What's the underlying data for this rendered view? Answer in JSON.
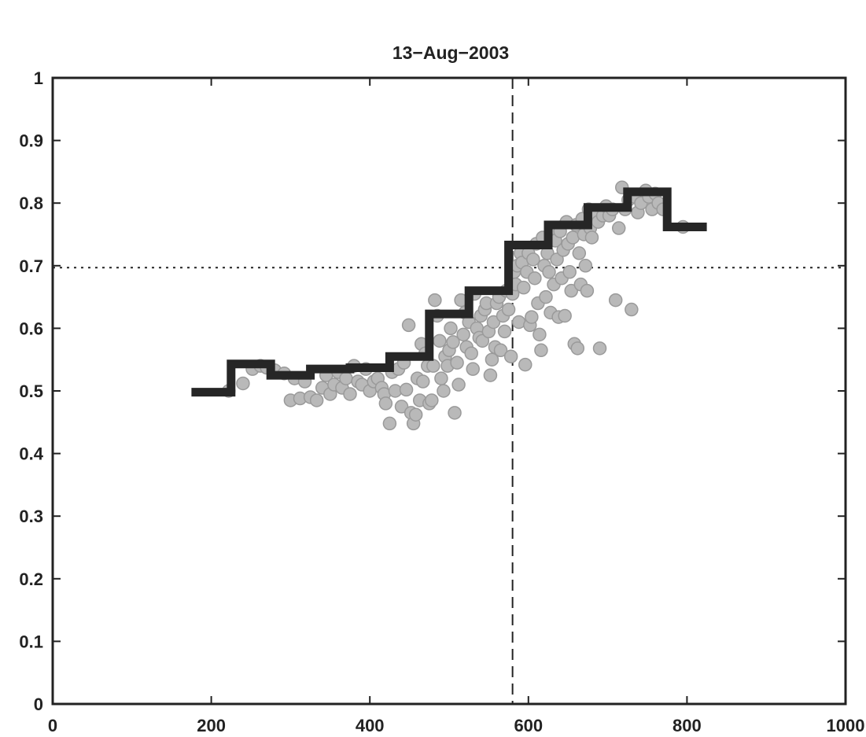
{
  "chart_data": {
    "type": "scatter",
    "title": "13−Aug−2003",
    "xlabel": "",
    "ylabel": "",
    "xlim": [
      0,
      1000
    ],
    "ylim": [
      0,
      1
    ],
    "x_ticks": [
      "0",
      "200",
      "400",
      "600",
      "800",
      "1000"
    ],
    "y_ticks": [
      "0",
      "0.1",
      "0.2",
      "0.3",
      "0.4",
      "0.5",
      "0.6",
      "0.7",
      "0.8",
      "0.9",
      "1"
    ],
    "grid": false,
    "legend": "none",
    "reference_lines": [
      {
        "orientation": "vertical",
        "value": 580,
        "style": "dashed"
      },
      {
        "orientation": "horizontal",
        "value": 0.697,
        "style": "dotted"
      }
    ],
    "colors": {
      "axis": "#222222",
      "points_fill": "#b9b9b9",
      "points_stroke": "#9a9a9a",
      "step_line": "#262626"
    },
    "series": [
      {
        "kind": "scatter",
        "points": [
          [
            222,
            0.5
          ],
          [
            240,
            0.512
          ],
          [
            252,
            0.535
          ],
          [
            262,
            0.54
          ],
          [
            270,
            0.537
          ],
          [
            280,
            0.533
          ],
          [
            292,
            0.528
          ],
          [
            300,
            0.485
          ],
          [
            305,
            0.52
          ],
          [
            312,
            0.488
          ],
          [
            318,
            0.515
          ],
          [
            325,
            0.49
          ],
          [
            333,
            0.485
          ],
          [
            340,
            0.505
          ],
          [
            345,
            0.525
          ],
          [
            350,
            0.495
          ],
          [
            355,
            0.51
          ],
          [
            360,
            0.53
          ],
          [
            365,
            0.505
          ],
          [
            370,
            0.52
          ],
          [
            375,
            0.495
          ],
          [
            380,
            0.54
          ],
          [
            385,
            0.515
          ],
          [
            390,
            0.51
          ],
          [
            395,
            0.535
          ],
          [
            400,
            0.5
          ],
          [
            405,
            0.515
          ],
          [
            410,
            0.52
          ],
          [
            415,
            0.505
          ],
          [
            418,
            0.495
          ],
          [
            420,
            0.48
          ],
          [
            425,
            0.448
          ],
          [
            428,
            0.53
          ],
          [
            432,
            0.5
          ],
          [
            436,
            0.535
          ],
          [
            440,
            0.475
          ],
          [
            443,
            0.545
          ],
          [
            446,
            0.502
          ],
          [
            449,
            0.605
          ],
          [
            452,
            0.465
          ],
          [
            455,
            0.448
          ],
          [
            458,
            0.462
          ],
          [
            460,
            0.52
          ],
          [
            463,
            0.485
          ],
          [
            465,
            0.575
          ],
          [
            467,
            0.515
          ],
          [
            470,
            0.56
          ],
          [
            473,
            0.54
          ],
          [
            475,
            0.48
          ],
          [
            478,
            0.485
          ],
          [
            480,
            0.54
          ],
          [
            482,
            0.645
          ],
          [
            485,
            0.62
          ],
          [
            488,
            0.58
          ],
          [
            490,
            0.52
          ],
          [
            493,
            0.5
          ],
          [
            495,
            0.555
          ],
          [
            498,
            0.54
          ],
          [
            500,
            0.565
          ],
          [
            502,
            0.6
          ],
          [
            505,
            0.578
          ],
          [
            507,
            0.465
          ],
          [
            510,
            0.545
          ],
          [
            512,
            0.51
          ],
          [
            515,
            0.645
          ],
          [
            518,
            0.59
          ],
          [
            520,
            0.625
          ],
          [
            522,
            0.57
          ],
          [
            525,
            0.61
          ],
          [
            528,
            0.56
          ],
          [
            530,
            0.535
          ],
          [
            532,
            0.655
          ],
          [
            535,
            0.6
          ],
          [
            538,
            0.585
          ],
          [
            540,
            0.62
          ],
          [
            542,
            0.58
          ],
          [
            545,
            0.63
          ],
          [
            547,
            0.64
          ],
          [
            550,
            0.595
          ],
          [
            552,
            0.525
          ],
          [
            554,
            0.55
          ],
          [
            556,
            0.61
          ],
          [
            558,
            0.57
          ],
          [
            560,
            0.64
          ],
          [
            563,
            0.65
          ],
          [
            565,
            0.565
          ],
          [
            568,
            0.62
          ],
          [
            570,
            0.595
          ],
          [
            572,
            0.66
          ],
          [
            575,
            0.63
          ],
          [
            578,
            0.555
          ],
          [
            580,
            0.655
          ],
          [
            582,
            0.69
          ],
          [
            584,
            0.67
          ],
          [
            586,
            0.7
          ],
          [
            588,
            0.61
          ],
          [
            590,
            0.72
          ],
          [
            592,
            0.705
          ],
          [
            594,
            0.665
          ],
          [
            596,
            0.542
          ],
          [
            598,
            0.69
          ],
          [
            600,
            0.72
          ],
          [
            602,
            0.605
          ],
          [
            604,
            0.618
          ],
          [
            606,
            0.71
          ],
          [
            608,
            0.68
          ],
          [
            610,
            0.735
          ],
          [
            612,
            0.64
          ],
          [
            614,
            0.59
          ],
          [
            616,
            0.565
          ],
          [
            618,
            0.745
          ],
          [
            620,
            0.7
          ],
          [
            622,
            0.65
          ],
          [
            624,
            0.72
          ],
          [
            626,
            0.69
          ],
          [
            628,
            0.625
          ],
          [
            630,
            0.76
          ],
          [
            632,
            0.67
          ],
          [
            634,
            0.74
          ],
          [
            636,
            0.71
          ],
          [
            638,
            0.618
          ],
          [
            640,
            0.755
          ],
          [
            642,
            0.68
          ],
          [
            644,
            0.725
          ],
          [
            646,
            0.62
          ],
          [
            648,
            0.77
          ],
          [
            650,
            0.735
          ],
          [
            652,
            0.69
          ],
          [
            654,
            0.66
          ],
          [
            656,
            0.745
          ],
          [
            658,
            0.575
          ],
          [
            660,
            0.765
          ],
          [
            662,
            0.568
          ],
          [
            664,
            0.72
          ],
          [
            666,
            0.67
          ],
          [
            668,
            0.775
          ],
          [
            670,
            0.75
          ],
          [
            672,
            0.7
          ],
          [
            674,
            0.66
          ],
          [
            676,
            0.79
          ],
          [
            678,
            0.76
          ],
          [
            680,
            0.745
          ],
          [
            684,
            0.785
          ],
          [
            688,
            0.77
          ],
          [
            690,
            0.568
          ],
          [
            694,
            0.78
          ],
          [
            698,
            0.795
          ],
          [
            702,
            0.78
          ],
          [
            706,
            0.79
          ],
          [
            710,
            0.645
          ],
          [
            714,
            0.76
          ],
          [
            718,
            0.825
          ],
          [
            722,
            0.79
          ],
          [
            726,
            0.805
          ],
          [
            730,
            0.63
          ],
          [
            734,
            0.81
          ],
          [
            738,
            0.785
          ],
          [
            742,
            0.8
          ],
          [
            748,
            0.82
          ],
          [
            752,
            0.81
          ],
          [
            756,
            0.79
          ],
          [
            760,
            0.815
          ],
          [
            764,
            0.8
          ],
          [
            770,
            0.79
          ],
          [
            795,
            0.762
          ]
        ]
      },
      {
        "kind": "step",
        "steps": [
          [
            175,
            225,
            0.498
          ],
          [
            225,
            275,
            0.543
          ],
          [
            275,
            325,
            0.525
          ],
          [
            325,
            375,
            0.535
          ],
          [
            375,
            425,
            0.537
          ],
          [
            425,
            475,
            0.555
          ],
          [
            475,
            525,
            0.623
          ],
          [
            525,
            575,
            0.66
          ],
          [
            575,
            625,
            0.733
          ],
          [
            625,
            675,
            0.765
          ],
          [
            675,
            725,
            0.793
          ],
          [
            725,
            775,
            0.818
          ],
          [
            775,
            825,
            0.762
          ]
        ]
      }
    ]
  }
}
